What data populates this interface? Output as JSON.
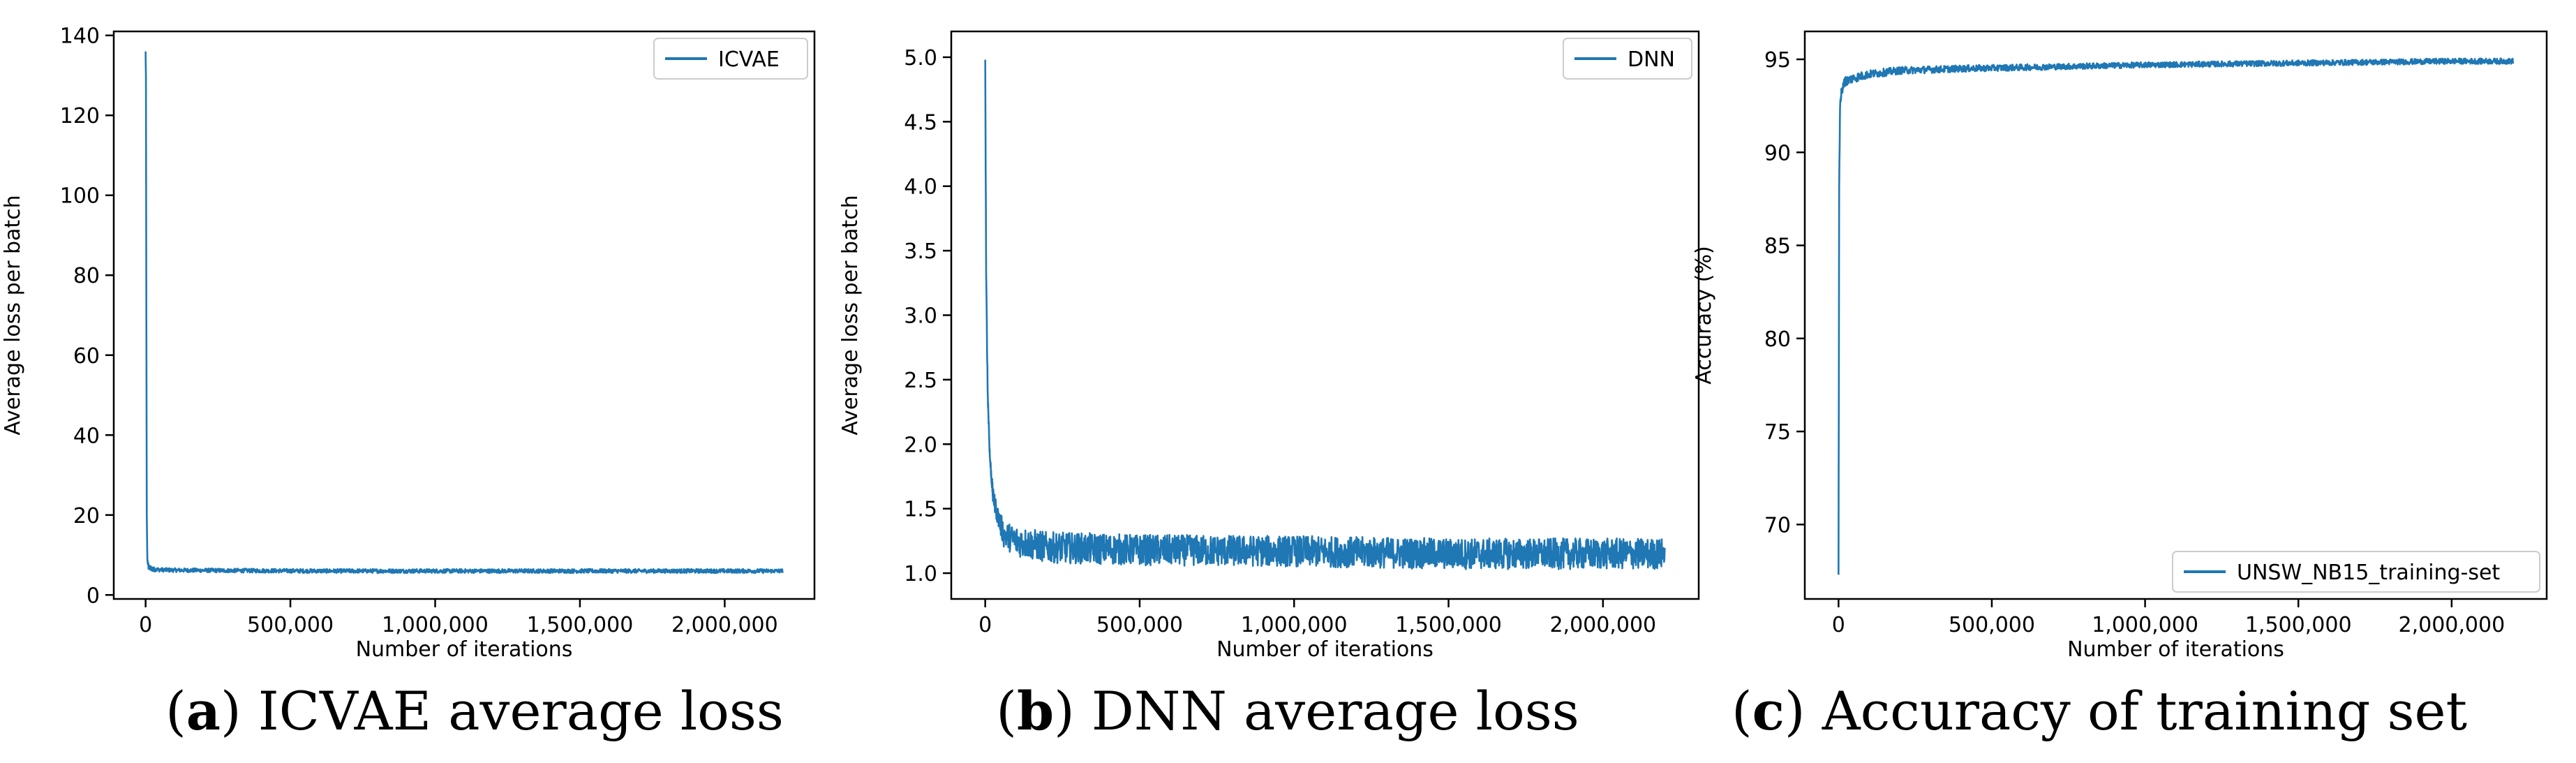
{
  "figure": {
    "line_color": "#1f77b4",
    "charts": [
      {
        "caption": {
          "letter": "a",
          "text": "ICVAE average loss"
        }
      },
      {
        "caption": {
          "letter": "b",
          "text": "DNN average loss"
        }
      },
      {
        "caption": {
          "letter": "c",
          "text": "Accuracy of training set"
        }
      }
    ]
  },
  "chart_data": [
    {
      "type": "line",
      "title": "",
      "xlabel": "Number of iterations",
      "ylabel": "Average loss per batch",
      "xlim": [
        -110000,
        2310000
      ],
      "ylim": [
        -1,
        141
      ],
      "xticks": [
        0,
        500000,
        1000000,
        1500000,
        2000000
      ],
      "xtick_labels": [
        "0",
        "500,000",
        "1,000,000",
        "1,500,000",
        "2,000,000"
      ],
      "yticks": [
        0,
        20,
        40,
        60,
        80,
        100,
        120,
        140
      ],
      "ytick_labels": [
        "0",
        "20",
        "40",
        "60",
        "80",
        "100",
        "120",
        "140"
      ],
      "legend": {
        "position": "top-right",
        "entries": [
          "ICVAE"
        ]
      },
      "grid": false,
      "series": [
        {
          "name": "ICVAE",
          "x": [
            0,
            1000,
            2500,
            4000,
            6000,
            10000,
            20000,
            50000,
            100000,
            300000,
            600000,
            1000000,
            1500000,
            2000000,
            2200000
          ],
          "y": [
            136,
            130,
            70,
            20,
            9,
            7,
            6.5,
            6.3,
            6.2,
            6.1,
            6.0,
            6.0,
            6.0,
            6.0,
            6.0
          ],
          "noise": [
            0,
            0,
            0,
            0,
            0.6,
            0.6,
            0.6,
            0.5,
            0.5,
            0.5,
            0.5,
            0.5,
            0.5,
            0.5,
            0.5
          ]
        }
      ]
    },
    {
      "type": "line",
      "title": "",
      "xlabel": "Number of iterations",
      "ylabel": "Average loss per batch",
      "xlim": [
        -110000,
        2310000
      ],
      "ylim": [
        0.8,
        5.2
      ],
      "xticks": [
        0,
        500000,
        1000000,
        1500000,
        2000000
      ],
      "xtick_labels": [
        "0",
        "500,000",
        "1,000,000",
        "1,500,000",
        "2,000,000"
      ],
      "yticks": [
        1.0,
        1.5,
        2.0,
        2.5,
        3.0,
        3.5,
        4.0,
        4.5,
        5.0
      ],
      "ytick_labels": [
        "1.0",
        "1.5",
        "2.0",
        "2.5",
        "3.0",
        "3.5",
        "4.0",
        "4.5",
        "5.0"
      ],
      "legend": {
        "position": "top-right",
        "entries": [
          "DNN"
        ]
      },
      "grid": false,
      "series": [
        {
          "name": "DNN",
          "x": [
            0,
            3000,
            8000,
            15000,
            25000,
            40000,
            60000,
            100000,
            200000,
            500000,
            1000000,
            1500000,
            2000000,
            2200000
          ],
          "y": [
            4.98,
            3.3,
            2.4,
            1.9,
            1.6,
            1.45,
            1.3,
            1.25,
            1.2,
            1.18,
            1.17,
            1.15,
            1.15,
            1.15
          ],
          "noise": [
            0,
            0.05,
            0.05,
            0.05,
            0.06,
            0.08,
            0.1,
            0.12,
            0.12,
            0.12,
            0.12,
            0.12,
            0.12,
            0.12
          ]
        }
      ]
    },
    {
      "type": "line",
      "title": "",
      "xlabel": "Number of iterations",
      "ylabel": "Accuracy (%)",
      "xlim": [
        -110000,
        2310000
      ],
      "ylim": [
        66,
        96.5
      ],
      "xticks": [
        0,
        500000,
        1000000,
        1500000,
        2000000
      ],
      "xtick_labels": [
        "0",
        "500,000",
        "1,000,000",
        "1,500,000",
        "2,000,000"
      ],
      "yticks": [
        70,
        75,
        80,
        85,
        90,
        95
      ],
      "ytick_labels": [
        "70",
        "75",
        "80",
        "85",
        "90",
        "95"
      ],
      "legend": {
        "position": "bottom-right",
        "entries": [
          "UNSW_NB15_training-set"
        ]
      },
      "grid": false,
      "series": [
        {
          "name": "UNSW_NB15_training-set",
          "x": [
            0,
            2000,
            5000,
            10000,
            20000,
            50000,
            100000,
            200000,
            400000,
            700000,
            1000000,
            1500000,
            2000000,
            2200000
          ],
          "y": [
            67.3,
            88,
            92.5,
            93.3,
            93.8,
            94.0,
            94.2,
            94.4,
            94.5,
            94.6,
            94.7,
            94.8,
            94.9,
            94.9
          ],
          "noise": [
            0,
            0,
            0.2,
            0.25,
            0.25,
            0.25,
            0.22,
            0.2,
            0.18,
            0.16,
            0.15,
            0.15,
            0.15,
            0.15
          ]
        }
      ]
    }
  ]
}
